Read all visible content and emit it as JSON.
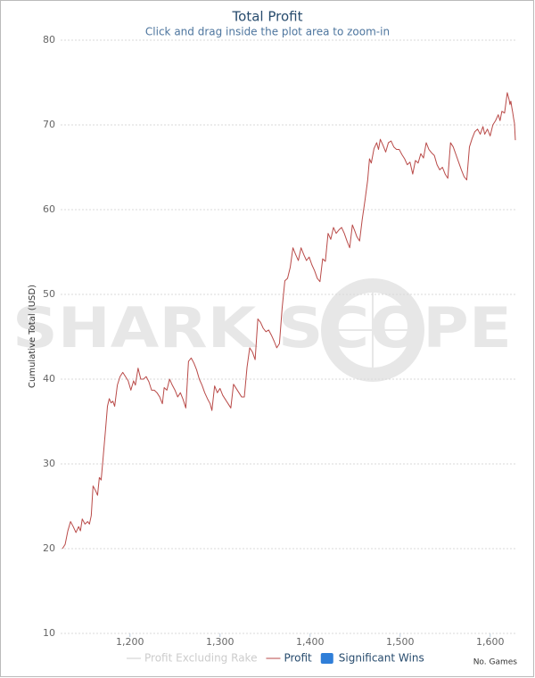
{
  "chart_data": {
    "type": "line",
    "title": "Total Profit",
    "subtitle": "Click and drag inside the plot area to zoom-in",
    "watermark": "SHARK SCOPE",
    "y_label": "Cumulative Total (USD)",
    "x_label": "No. Games",
    "x": [
      1125,
      1128,
      1131,
      1134,
      1137,
      1140,
      1143,
      1145,
      1147,
      1150,
      1153,
      1155,
      1157,
      1159,
      1162,
      1164,
      1166,
      1168,
      1170,
      1173,
      1175,
      1177,
      1179,
      1181,
      1183,
      1186,
      1189,
      1192,
      1195,
      1198,
      1201,
      1204,
      1206,
      1209,
      1212,
      1215,
      1218,
      1221,
      1224,
      1227,
      1230,
      1233,
      1236,
      1238,
      1241,
      1244,
      1247,
      1250,
      1253,
      1256,
      1259,
      1262,
      1265,
      1268,
      1271,
      1274,
      1277,
      1280,
      1283,
      1286,
      1289,
      1291,
      1294,
      1297,
      1300,
      1303,
      1306,
      1309,
      1312,
      1315,
      1318,
      1321,
      1324,
      1327,
      1330,
      1333,
      1336,
      1339,
      1342,
      1345,
      1348,
      1351,
      1354,
      1357,
      1360,
      1363,
      1366,
      1369,
      1372,
      1375,
      1378,
      1381,
      1384,
      1387,
      1390,
      1393,
      1396,
      1399,
      1402,
      1405,
      1408,
      1411,
      1414,
      1417,
      1420,
      1423,
      1426,
      1429,
      1432,
      1435,
      1438,
      1441,
      1444,
      1447,
      1450,
      1452,
      1455,
      1458,
      1461,
      1464,
      1466,
      1468,
      1471,
      1474,
      1476,
      1478,
      1481,
      1484,
      1487,
      1490,
      1493,
      1496,
      1499,
      1502,
      1505,
      1508,
      1511,
      1514,
      1517,
      1520,
      1523,
      1526,
      1529,
      1532,
      1535,
      1538,
      1541,
      1544,
      1547,
      1550,
      1553,
      1556,
      1559,
      1562,
      1565,
      1568,
      1571,
      1574,
      1577,
      1580,
      1583,
      1586,
      1589,
      1592,
      1594,
      1597,
      1600,
      1603,
      1606,
      1609,
      1611,
      1613,
      1616,
      1619,
      1621,
      1622,
      1623,
      1624,
      1625,
      1626,
      1627,
      1628
    ],
    "series": [
      {
        "name": "Profit",
        "color": "#b94a48",
        "values": [
          20.0,
          20.5,
          22.1,
          23.2,
          22.6,
          21.9,
          22.6,
          22.1,
          23.5,
          22.9,
          23.2,
          22.9,
          23.9,
          27.4,
          26.8,
          26.3,
          28.4,
          28.1,
          30.5,
          34.2,
          36.8,
          37.7,
          37.2,
          37.4,
          36.8,
          39.3,
          40.3,
          40.8,
          40.3,
          39.8,
          38.7,
          39.8,
          39.3,
          41.3,
          40.0,
          40.0,
          40.3,
          39.7,
          38.7,
          38.7,
          38.4,
          37.9,
          37.1,
          39.0,
          38.7,
          40.0,
          39.3,
          38.7,
          37.9,
          38.4,
          37.6,
          36.6,
          42.1,
          42.5,
          41.9,
          41.1,
          40.0,
          39.3,
          38.4,
          37.7,
          37.1,
          36.3,
          39.2,
          38.4,
          38.9,
          38.1,
          37.6,
          37.1,
          36.6,
          39.4,
          38.9,
          38.4,
          37.9,
          37.9,
          41.4,
          43.7,
          43.2,
          42.3,
          47.1,
          46.7,
          46.0,
          45.6,
          45.8,
          45.2,
          44.5,
          43.7,
          44.2,
          48.4,
          51.6,
          51.9,
          53.2,
          55.5,
          54.7,
          54.0,
          55.5,
          54.7,
          54.0,
          54.4,
          53.5,
          52.8,
          51.9,
          51.5,
          54.2,
          53.9,
          57.2,
          56.5,
          57.9,
          57.2,
          57.6,
          57.9,
          57.2,
          56.3,
          55.5,
          58.2,
          57.4,
          56.8,
          56.3,
          58.9,
          61.1,
          63.5,
          66.0,
          65.5,
          67.2,
          67.9,
          67.1,
          68.3,
          67.6,
          66.8,
          67.9,
          68.1,
          67.4,
          67.1,
          67.1,
          66.5,
          66.0,
          65.3,
          65.6,
          64.2,
          65.8,
          65.5,
          66.6,
          66.1,
          67.9,
          67.1,
          66.7,
          66.4,
          65.3,
          64.7,
          65.0,
          64.2,
          63.7,
          67.9,
          67.4,
          66.5,
          65.6,
          64.7,
          63.9,
          63.5,
          67.4,
          68.4,
          69.2,
          69.5,
          68.9,
          69.8,
          68.9,
          69.5,
          68.7,
          70.0,
          70.5,
          71.2,
          70.5,
          71.6,
          71.4,
          73.8,
          73.0,
          72.4,
          72.8,
          72.1,
          71.5,
          70.8,
          70.2,
          68.2
        ]
      }
    ],
    "legend_extra": [
      {
        "name": "Profit Excluding Rake",
        "color": "#cccccc",
        "marker": "line"
      },
      {
        "name": "Significant Wins",
        "color": "#2f7ed8",
        "marker": "box"
      }
    ],
    "xlim": [
      1123,
      1630
    ],
    "xticks": [
      {
        "value": 1200,
        "label": "1,200"
      },
      {
        "value": 1300,
        "label": "1,300"
      },
      {
        "value": 1400,
        "label": "1,400"
      },
      {
        "value": 1500,
        "label": "1,500"
      },
      {
        "value": 1600,
        "label": "1,600"
      }
    ],
    "ylim": [
      10,
      80
    ],
    "yticks": [
      10,
      20,
      30,
      40,
      50,
      60,
      70,
      80
    ],
    "grid": true
  }
}
